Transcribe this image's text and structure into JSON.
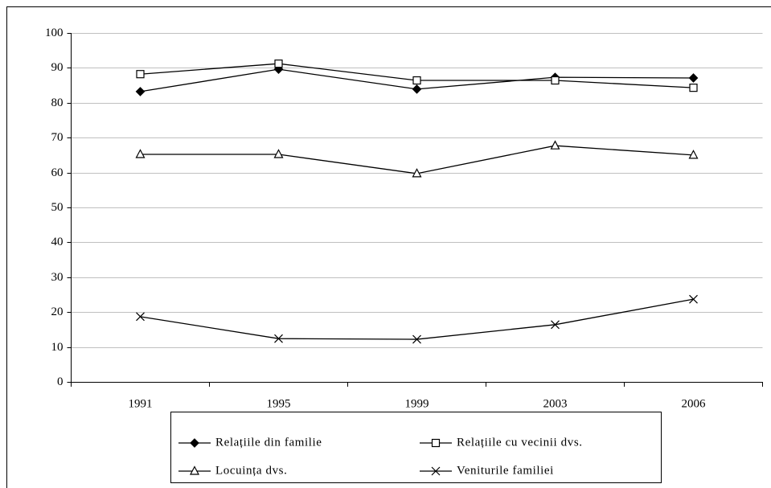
{
  "chart_data": {
    "type": "line",
    "categories": [
      "1991",
      "1995",
      "1999",
      "2003",
      "2006"
    ],
    "series": [
      {
        "name": "Relațiile din familie",
        "color": "#000000",
        "marker": "diamond",
        "values": [
          83.2,
          89.6,
          83.9,
          87.3,
          87.1
        ]
      },
      {
        "name": "Relațiile cu vecinii dvs.",
        "color": "#000000",
        "marker": "square",
        "values": [
          88.2,
          91.2,
          86.4,
          86.4,
          84.3
        ]
      },
      {
        "name": "Locuința dvs.",
        "color": "#000000",
        "marker": "triangle",
        "values": [
          65.2,
          65.2,
          59.7,
          67.7,
          65
        ]
      },
      {
        "name": "Veniturile familiei",
        "color": "#000000",
        "marker": "x",
        "values": [
          18.7,
          12.4,
          12.2,
          16.4,
          23.7
        ]
      }
    ],
    "ylim": [
      0,
      100
    ],
    "yticks": [
      0,
      10,
      20,
      30,
      40,
      50,
      60,
      70,
      80,
      90,
      100
    ],
    "grid": true
  }
}
